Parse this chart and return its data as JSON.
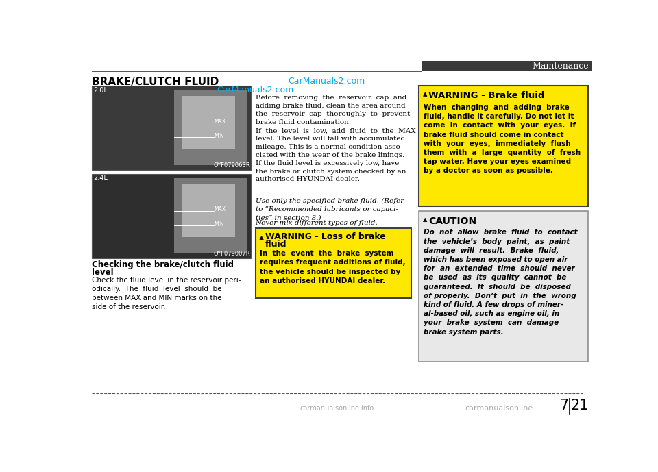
{
  "page_title": "Maintenance",
  "section_title": "BRAKE/CLUTCH FLUID",
  "carmanuals_url": "CarManuals2.com",
  "carmanuals_color": "#00AEEF",
  "header_bar_color": "#3a3a3a",
  "bg_color": "#ffffff",
  "page_number_left": "7",
  "page_number_right": "21",
  "image1_label": "2.0L",
  "image1_code": "OYF079063R",
  "image2_label": "2.4L",
  "image2_code": "OYF079007R",
  "caption_bold_line1": "Checking the brake/clutch fluid",
  "caption_bold_line2": "level",
  "caption_normal": "Check the fluid level in the reservoir peri-\nodically.  The  fluid  level  should  be\nbetween MAX and MIN marks on the\nside of the reservoir.",
  "main_text_para1": "Before  removing  the  reservoir  cap  and\nadding brake fluid, clean the area around\nthe  reservoir  cap  thoroughly  to  prevent\nbrake fluid contamination.",
  "main_text_para2": "If  the  level  is  low,  add  fluid  to  the  MAX\nlevel. The level will fall with accumulated\nmileage. This is a normal condition asso-\nciated with the wear of the brake linings.\nIf the fluid level is excessively low, have\nthe brake or clutch system checked by an\nauthorised HYUNDAI dealer.",
  "main_text_para3": "Use only the specified brake fluid. (Refer\nto “Recommended lubricants or capaci-\nties” in section 8.)",
  "main_text_para4": "Never mix different types of fluid.",
  "warning1_title": "WARNING - Brake fluid",
  "warning1_text": "When  changing  and  adding  brake\nfluid, handle it carefully. Do not let it\ncome  in  contact  with  your  eyes.  If\nbrake fluid should come in contact\nwith  your  eyes,  immediately  flush\nthem  with  a  large  quantity  of  fresh\ntap water. Have your eyes examined\nby a doctor as soon as possible.",
  "warning1_bg": "#FFE800",
  "warning1_border": "#404040",
  "warning2_title_line1": "WARNING - Loss of brake",
  "warning2_title_line2": "fluid",
  "warning2_text": "In  the  event  the  brake  system\nrequires frequent additions of fluid,\nthe vehicle should be inspected by\nan authorised HYUNDAI dealer.",
  "warning2_bg": "#FFE800",
  "warning2_border": "#404040",
  "caution_title": "CAUTION",
  "caution_text": "Do  not  allow  brake  fluid  to  contact\nthe  vehicle’s  body  paint,  as  paint\ndamage  will  result.  Brake  fluid,\nwhich has been exposed to open air\nfor  an  extended  time  should  never\nbe  used  as  its  quality  cannot  be\nguaranteed.  It  should  be  disposed\nof properly.  Don’t  put  in  the  wrong\nkind of fluid. A few drops of miner-\nal-based oil, such as engine oil, in\nyour  brake  system  can  damage\nbrake system parts.",
  "caution_bg": "#E8E8E8",
  "caution_border": "#909090",
  "footer_line_color": "#404040",
  "footer_logo_text": "carmanualsonline.info",
  "img1_bg": "#3d3d3d",
  "img1_right_bg": "#aaaaaa",
  "img2_bg": "#3d3d3d",
  "img2_right_bg": "#aaaaaa"
}
